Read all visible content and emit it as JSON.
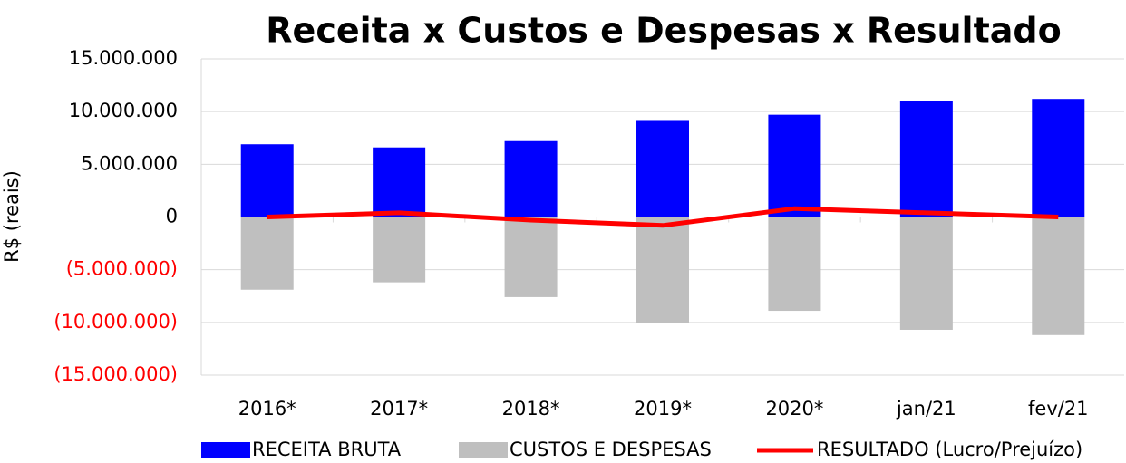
{
  "chart_data": {
    "type": "bar",
    "title": "Receita x Custos e Despesas x Resultado",
    "y_label": "R$ (reais)",
    "categories": [
      "2016*",
      "2017*",
      "2018*",
      "2019*",
      "2020*",
      "jan/21",
      "fev/21"
    ],
    "series": [
      {
        "name": "RECEITA BRUTA",
        "type": "bar",
        "color": "#0000ff",
        "values": [
          6900000,
          6600000,
          7200000,
          9200000,
          9700000,
          11000000,
          11200000
        ]
      },
      {
        "name": "CUSTOS E DESPESAS",
        "type": "bar",
        "color": "#bfbfbf",
        "values": [
          -6900000,
          -6200000,
          -7600000,
          -10100000,
          -8900000,
          -10700000,
          -11200000
        ]
      },
      {
        "name": "RESULTADO (Lucro/Prejuízo)",
        "type": "line",
        "color": "#ff0000",
        "values": [
          0,
          400000,
          -300000,
          -800000,
          800000,
          400000,
          0
        ]
      }
    ],
    "ylim": [
      -15000000,
      15000000
    ],
    "yticks": [
      {
        "value": -15000000,
        "label": "(15.000.000)"
      },
      {
        "value": -10000000,
        "label": "(10.000.000)"
      },
      {
        "value": -5000000,
        "label": "(5.000.000)"
      },
      0,
      {
        "value": 5000000,
        "label": "5.000.000"
      },
      {
        "value": 10000000,
        "label": "10.000.000"
      },
      {
        "value": 15000000,
        "label": "15.000.000"
      }
    ],
    "negative_tick_color": "#ff0000",
    "grid": true,
    "legend": "bottom"
  }
}
